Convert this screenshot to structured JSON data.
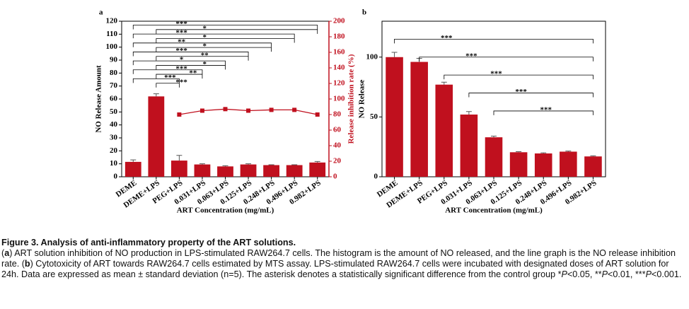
{
  "chart_data": [
    {
      "type": "bar",
      "label": "a",
      "x_label": "ART Concentration (mg/mL)",
      "y_label": "NO Release Amount",
      "y2_label": "Release inhibition rate (%)",
      "categories": [
        "DEME",
        "DEME+LPS",
        "PEG+LPS",
        "0.031+LPS",
        "0.063+LPS",
        "0.125+LPS",
        "0.248+LPS",
        "0.496+LPS",
        "0.982+LPS"
      ],
      "values": [
        11.5,
        62,
        12.5,
        9.5,
        8,
        9.5,
        9,
        9,
        11
      ],
      "errors": [
        1.5,
        2,
        4,
        0.5,
        0.5,
        0.5,
        0.3,
        0.3,
        0.8
      ],
      "color": "#c0101e",
      "line_values": [
        null,
        null,
        80,
        85,
        87,
        85,
        86,
        86,
        80
      ],
      "line_color": "#c0101e",
      "ylim": [
        0,
        120
      ],
      "yticks": [
        0,
        10,
        20,
        30,
        40,
        50,
        60,
        70,
        80,
        90,
        100,
        110,
        120
      ],
      "y2lim": [
        0,
        200
      ],
      "y2ticks": [
        0,
        20,
        40,
        60,
        80,
        100,
        120,
        140,
        160,
        180,
        200
      ],
      "brackets": [
        {
          "text": "***",
          "from": 0,
          "to": 8
        },
        {
          "text": "*",
          "from": 1,
          "to": 8
        },
        {
          "text": "***",
          "from": 0,
          "to": 7
        },
        {
          "text": "*",
          "from": 1,
          "to": 7
        },
        {
          "text": "**",
          "from": 0,
          "to": 6
        },
        {
          "text": "*",
          "from": 1,
          "to": 6
        },
        {
          "text": "***",
          "from": 0,
          "to": 5
        },
        {
          "text": "**",
          "from": 1,
          "to": 5
        },
        {
          "text": "*",
          "from": 0,
          "to": 4
        },
        {
          "text": "*",
          "from": 1,
          "to": 4
        },
        {
          "text": "***",
          "from": 0,
          "to": 3
        },
        {
          "text": "**",
          "from": 1,
          "to": 3
        },
        {
          "text": "***",
          "from": 0,
          "to": 2
        },
        {
          "text": "***",
          "from": 1,
          "to": 2
        }
      ]
    },
    {
      "type": "bar",
      "label": "b",
      "x_label": "ART Concentration (mg/mL)",
      "y_label": "NO Release",
      "categories": [
        "DEME",
        "DEME+LPS",
        "PEG+LPS",
        "0.031+LPS",
        "0.063+LPS",
        "0.125+LPS",
        "0.248+LPS",
        "0.496+LPS",
        "0.982+LPS"
      ],
      "values": [
        100,
        96,
        77,
        52,
        33,
        20.5,
        19.5,
        21,
        17
      ],
      "errors": [
        4,
        3,
        2,
        2.5,
        1,
        0.5,
        0.5,
        0.5,
        0.5
      ],
      "color": "#c0101e",
      "ylim": [
        0,
        130
      ],
      "yticks": [
        0,
        50,
        100
      ],
      "brackets": [
        {
          "text": "***",
          "from": 0,
          "to": 8
        },
        {
          "text": "***",
          "from": 1,
          "to": 8
        },
        {
          "text": "***",
          "from": 2,
          "to": 8
        },
        {
          "text": "***",
          "from": 3,
          "to": 8
        },
        {
          "text": "***",
          "from": 4,
          "to": 8
        }
      ]
    }
  ],
  "caption": {
    "title": "Figure 3. Analysis of anti-inflammatory property of the ART solutions.",
    "parts": [
      "(",
      "a",
      ") ART solution inhibition of NO production in LPS-stimulated RAW264.7 cells. The histogram is the amount of NO released, and the line graph is the NO release inhibition rate. (",
      "b",
      ") Cytotoxicity of ART towards RAW264.7 cells estimated by MTS assay. LPS-stimulated RAW264.7 cells were incubated with designated doses of ART solution for 24h. Data are expressed as mean ± standard deviation (n=5). The asterisk denotes a statistically significant difference from the control group *",
      "P",
      "<0.05, **",
      "P",
      "<0.01,  ***",
      "P",
      "<0.001."
    ]
  }
}
